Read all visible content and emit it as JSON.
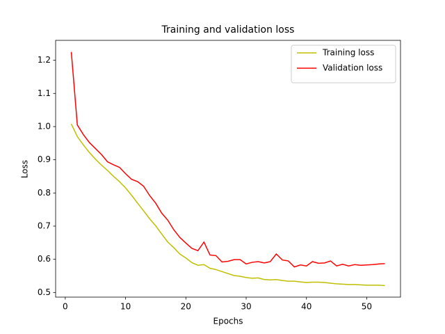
{
  "chart_data": {
    "type": "line",
    "title": "Training and validation loss",
    "xlabel": "Epochs",
    "ylabel": "Loss",
    "x": [
      1,
      2,
      3,
      4,
      5,
      6,
      7,
      8,
      9,
      10,
      11,
      12,
      13,
      14,
      15,
      16,
      17,
      18,
      19,
      20,
      21,
      22,
      23,
      24,
      25,
      26,
      27,
      28,
      29,
      30,
      31,
      32,
      33,
      34,
      35,
      36,
      37,
      38,
      39,
      40,
      41,
      42,
      43,
      44,
      45,
      46,
      47,
      48,
      49,
      50,
      51,
      52,
      53
    ],
    "series": [
      {
        "name": "Training loss",
        "color": "#bfbf00",
        "values": [
          1.008,
          0.97,
          0.945,
          0.922,
          0.902,
          0.884,
          0.868,
          0.85,
          0.834,
          0.815,
          0.793,
          0.769,
          0.746,
          0.722,
          0.701,
          0.676,
          0.652,
          0.635,
          0.616,
          0.604,
          0.59,
          0.582,
          0.584,
          0.573,
          0.569,
          0.563,
          0.557,
          0.551,
          0.549,
          0.545,
          0.543,
          0.544,
          0.539,
          0.538,
          0.539,
          0.536,
          0.534,
          0.534,
          0.532,
          0.53,
          0.531,
          0.531,
          0.53,
          0.528,
          0.526,
          0.525,
          0.524,
          0.524,
          0.523,
          0.522,
          0.522,
          0.522,
          0.521
        ]
      },
      {
        "name": "Validation loss",
        "color": "#ff0000",
        "values": [
          1.225,
          1.005,
          0.976,
          0.952,
          0.934,
          0.916,
          0.894,
          0.885,
          0.877,
          0.858,
          0.841,
          0.834,
          0.82,
          0.792,
          0.769,
          0.739,
          0.718,
          0.689,
          0.666,
          0.649,
          0.633,
          0.626,
          0.652,
          0.613,
          0.611,
          0.592,
          0.594,
          0.599,
          0.599,
          0.586,
          0.591,
          0.593,
          0.589,
          0.593,
          0.616,
          0.598,
          0.595,
          0.577,
          0.583,
          0.58,
          0.593,
          0.588,
          0.589,
          0.595,
          0.58,
          0.585,
          0.58,
          0.584,
          0.582,
          0.583,
          0.584,
          0.586,
          0.587
        ]
      }
    ],
    "xlim": [
      -1.6,
      55.6
    ],
    "ylim": [
      0.486,
      1.26
    ],
    "xticks": [
      0,
      10,
      20,
      30,
      40,
      50
    ],
    "yticks": [
      0.5,
      0.6,
      0.7,
      0.8,
      0.9,
      {
        "value": 1,
        "label": "1.0"
      },
      1.1,
      1.2
    ],
    "legend": "upper right"
  }
}
